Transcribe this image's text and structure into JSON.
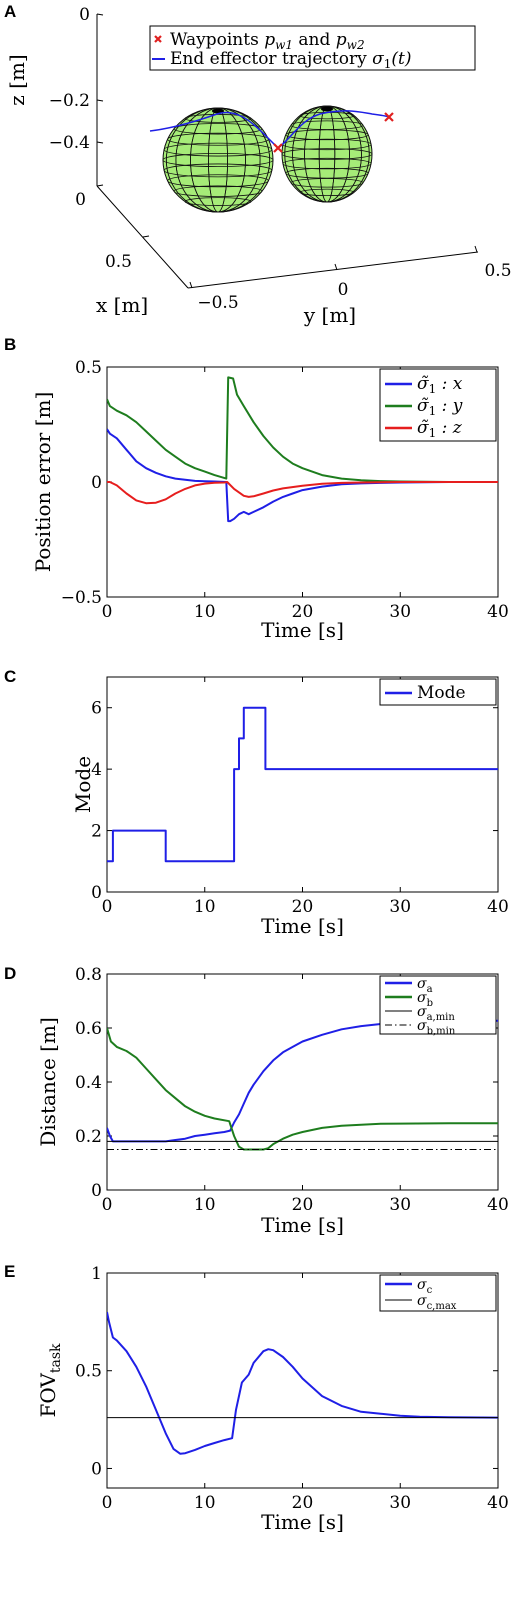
{
  "colors": {
    "blue": "#1f1fe6",
    "green": "#1e7d1e",
    "red": "#e61e1e",
    "black": "#000000",
    "sphere_fill": "#a6ec78",
    "sphere_grid": "#111111",
    "waypoint": "#e02020"
  },
  "panels": {
    "A": {
      "letter": "A"
    },
    "B": {
      "letter": "B"
    },
    "C": {
      "letter": "C"
    },
    "D": {
      "letter": "D"
    },
    "E": {
      "letter": "E"
    }
  },
  "chart_data": [
    {
      "id": "A",
      "type": "scatter",
      "title": "",
      "xlabel": "x [m]",
      "ylabel": "y [m]",
      "zlabel": "z [m]",
      "x_ticks": [
        "0",
        "0.5"
      ],
      "y_ticks": [
        "−0.5",
        "0",
        "0.5"
      ],
      "z_ticks": [
        "0",
        "−0.2",
        "−0.4"
      ],
      "legend": [
        {
          "label": "Waypoints p_w1 and p_w2",
          "marker": "x",
          "color": "#e02020"
        },
        {
          "label": "End effector trajectory σ1(t)",
          "marker": "line",
          "color": "#1f1fe6"
        }
      ],
      "legend_text": {
        "waypoints_prefix": "Waypoints",
        "waypoints_p1": "p",
        "waypoints_sub1": "w1",
        "waypoints_and": "and",
        "waypoints_p2": "p",
        "waypoints_sub2": "w2",
        "trajectory_prefix": "End effector trajectory",
        "trajectory_sym": "σ",
        "trajectory_sub": "1",
        "trajectory_arg": "(t)"
      },
      "objects": [
        "sphere obstacle 1",
        "sphere obstacle 2"
      ],
      "waypoints": 2,
      "legend_position": "top-right"
    },
    {
      "id": "B",
      "type": "line",
      "title": "",
      "xlabel": "Time [s]",
      "ylabel": "Position error [m]",
      "xlim": [
        0,
        40
      ],
      "ylim": [
        -0.5,
        0.5
      ],
      "x_ticks": [
        0,
        10,
        20,
        30,
        40
      ],
      "y_ticks": [
        {
          "v": -0.5,
          "label": "−0.5"
        },
        {
          "v": 0,
          "label": "0"
        },
        {
          "v": 0.5,
          "label": "0.5"
        }
      ],
      "legend_position": "top-right",
      "legend_entries": [
        {
          "sym": "σ̃",
          "sub": "1",
          "rest": " : x"
        },
        {
          "sym": "σ̃",
          "sub": "1",
          "rest": " : y"
        },
        {
          "sym": "σ̃",
          "sub": "1",
          "rest": " : z"
        }
      ],
      "series": [
        {
          "name": "σ̃1 : x",
          "color": "#1f1fe6",
          "x": [
            0,
            0.3,
            1,
            2,
            3,
            4,
            5,
            6,
            7,
            8,
            9,
            10,
            11,
            12.2,
            12.4,
            12.6,
            13,
            13.5,
            14,
            14.5,
            15,
            16,
            17,
            18,
            19,
            20,
            22,
            24,
            26,
            28,
            30,
            35,
            40
          ],
          "y": [
            0.23,
            0.21,
            0.19,
            0.14,
            0.09,
            0.06,
            0.04,
            0.025,
            0.015,
            0.01,
            0.005,
            0.003,
            0.002,
            0.0,
            -0.17,
            -0.17,
            -0.16,
            -0.14,
            -0.13,
            -0.14,
            -0.13,
            -0.11,
            -0.085,
            -0.065,
            -0.05,
            -0.035,
            -0.02,
            -0.01,
            -0.006,
            -0.004,
            -0.002,
            0,
            0
          ]
        },
        {
          "name": "σ̃1 : y",
          "color": "#1e7d1e",
          "x": [
            0,
            0.3,
            1,
            2,
            3,
            4,
            5,
            6,
            7,
            8,
            9,
            10,
            11,
            12.2,
            12.4,
            12.9,
            13.3,
            14,
            15,
            16,
            17,
            18,
            19,
            20,
            22,
            24,
            26,
            28,
            30,
            35,
            40
          ],
          "y": [
            0.36,
            0.33,
            0.31,
            0.29,
            0.26,
            0.22,
            0.18,
            0.14,
            0.11,
            0.08,
            0.06,
            0.045,
            0.03,
            0.015,
            0.455,
            0.45,
            0.38,
            0.33,
            0.26,
            0.2,
            0.15,
            0.11,
            0.08,
            0.06,
            0.03,
            0.015,
            0.008,
            0.004,
            0.002,
            0,
            0
          ]
        },
        {
          "name": "σ̃1 : z",
          "color": "#e61e1e",
          "x": [
            0,
            0.3,
            1,
            2,
            3,
            4,
            5,
            6,
            7,
            8,
            9,
            10,
            11,
            12,
            12.3,
            13,
            14,
            14.5,
            15,
            16,
            17,
            18,
            20,
            22,
            24,
            26,
            30,
            35,
            40
          ],
          "y": [
            0,
            0,
            -0.015,
            -0.05,
            -0.08,
            -0.092,
            -0.09,
            -0.075,
            -0.05,
            -0.03,
            -0.015,
            -0.007,
            -0.003,
            -0.002,
            0,
            -0.03,
            -0.06,
            -0.065,
            -0.062,
            -0.05,
            -0.037,
            -0.028,
            -0.016,
            -0.008,
            -0.004,
            -0.002,
            0,
            0,
            0
          ]
        }
      ]
    },
    {
      "id": "C",
      "type": "line",
      "title": "",
      "xlabel": "Time [s]",
      "ylabel": "Mode",
      "xlim": [
        0,
        40
      ],
      "ylim": [
        0,
        7
      ],
      "x_ticks": [
        0,
        10,
        20,
        30,
        40
      ],
      "y_ticks": [
        {
          "v": 0,
          "label": "0"
        },
        {
          "v": 2,
          "label": "2"
        },
        {
          "v": 4,
          "label": "4"
        },
        {
          "v": 6,
          "label": "6"
        }
      ],
      "legend_position": "top-right",
      "legend_entries": [
        {
          "sym": "Mode",
          "sub": "",
          "rest": ""
        }
      ],
      "series": [
        {
          "name": "Mode",
          "color": "#1f1fe6",
          "x": [
            0,
            0.6,
            0.6,
            6,
            6,
            13,
            13,
            13.5,
            13.5,
            14,
            14,
            16.2,
            16.2,
            40
          ],
          "y": [
            1,
            1,
            2,
            2,
            1,
            1,
            4,
            4,
            5,
            5,
            6,
            6,
            4,
            4
          ]
        }
      ]
    },
    {
      "id": "D",
      "type": "line",
      "title": "",
      "xlabel": "Time [s]",
      "ylabel": "Distance [m]",
      "xlim": [
        0,
        40
      ],
      "ylim": [
        0,
        0.8
      ],
      "x_ticks": [
        0,
        10,
        20,
        30,
        40
      ],
      "y_ticks": [
        {
          "v": 0,
          "label": "0"
        },
        {
          "v": 0.2,
          "label": "0.2"
        },
        {
          "v": 0.4,
          "label": "0.4"
        },
        {
          "v": 0.6,
          "label": "0.6"
        },
        {
          "v": 0.8,
          "label": "0.8"
        }
      ],
      "legend_position": "top-right",
      "legend_entries": [
        {
          "sym": "σ",
          "sub": "a",
          "rest": ""
        },
        {
          "sym": "σ",
          "sub": "b",
          "rest": ""
        },
        {
          "sym": "σ",
          "sub": "a,min",
          "rest": ""
        },
        {
          "sym": "σ",
          "sub": "b,min",
          "rest": ""
        }
      ],
      "series": [
        {
          "name": "σa",
          "color": "#1f1fe6",
          "dash": "",
          "x": [
            0,
            0.3,
            0.6,
            1,
            3,
            6,
            7,
            8,
            9,
            10,
            11,
            12,
            12.6,
            13,
            13.5,
            14,
            14.5,
            15,
            16,
            17,
            18,
            19,
            20,
            22,
            24,
            26,
            28,
            30,
            32,
            35,
            40
          ],
          "y": [
            0.23,
            0.2,
            0.18,
            0.18,
            0.18,
            0.18,
            0.185,
            0.19,
            0.2,
            0.205,
            0.21,
            0.215,
            0.22,
            0.25,
            0.28,
            0.32,
            0.36,
            0.39,
            0.44,
            0.48,
            0.51,
            0.53,
            0.55,
            0.575,
            0.595,
            0.607,
            0.615,
            0.62,
            0.623,
            0.626,
            0.627
          ]
        },
        {
          "name": "σb",
          "color": "#1e7d1e",
          "dash": "",
          "x": [
            0,
            0.4,
            1,
            2,
            3,
            4,
            5,
            6,
            7,
            8,
            9,
            10,
            11,
            12.5,
            13,
            13.5,
            14,
            15,
            16,
            16.5,
            17,
            18,
            19,
            20,
            22,
            24,
            26,
            28,
            30,
            35,
            40
          ],
          "y": [
            0.6,
            0.55,
            0.53,
            0.515,
            0.49,
            0.45,
            0.41,
            0.37,
            0.34,
            0.31,
            0.29,
            0.275,
            0.265,
            0.255,
            0.2,
            0.16,
            0.15,
            0.15,
            0.15,
            0.155,
            0.17,
            0.19,
            0.205,
            0.215,
            0.23,
            0.238,
            0.242,
            0.245,
            0.246,
            0.247,
            0.247
          ]
        },
        {
          "name": "σa,min",
          "color": "#000000",
          "dash": "",
          "x": [
            0,
            40
          ],
          "y": [
            0.18,
            0.18
          ]
        },
        {
          "name": "σb,min",
          "color": "#000000",
          "dash": "7 3 1.5 3",
          "x": [
            0,
            40
          ],
          "y": [
            0.15,
            0.15
          ]
        }
      ]
    },
    {
      "id": "E",
      "type": "line",
      "title": "",
      "xlabel": "Time [s]",
      "ylabel": "FOV task",
      "ylabel_main": "FOV",
      "ylabel_sub": "task",
      "xlim": [
        0,
        40
      ],
      "ylim": [
        -0.1,
        1
      ],
      "x_ticks": [
        0,
        10,
        20,
        30,
        40
      ],
      "y_ticks": [
        {
          "v": 0,
          "label": "0"
        },
        {
          "v": 0.5,
          "label": "0.5"
        },
        {
          "v": 1,
          "label": "1"
        }
      ],
      "legend_position": "top-right",
      "legend_entries": [
        {
          "sym": "σ",
          "sub": "c",
          "rest": ""
        },
        {
          "sym": "σ",
          "sub": "c,max",
          "rest": ""
        }
      ],
      "series": [
        {
          "name": "σc",
          "color": "#1f1fe6",
          "dash": "",
          "x": [
            0,
            0.2,
            0.6,
            1,
            2,
            3,
            4,
            5,
            6,
            6.8,
            7.5,
            8,
            9,
            10,
            11,
            12,
            12.8,
            13.2,
            13.8,
            14.5,
            15,
            16,
            16.5,
            17,
            18,
            19,
            20,
            22,
            24,
            26,
            28,
            30,
            32,
            35,
            40
          ],
          "y": [
            0.8,
            0.75,
            0.67,
            0.655,
            0.6,
            0.52,
            0.42,
            0.3,
            0.18,
            0.1,
            0.075,
            0.078,
            0.095,
            0.115,
            0.13,
            0.145,
            0.155,
            0.3,
            0.44,
            0.48,
            0.54,
            0.6,
            0.61,
            0.605,
            0.57,
            0.52,
            0.46,
            0.37,
            0.32,
            0.29,
            0.28,
            0.27,
            0.265,
            0.262,
            0.26
          ]
        },
        {
          "name": "σc,max",
          "color": "#000000",
          "dash": "",
          "x": [
            0,
            40
          ],
          "y": [
            0.26,
            0.26
          ]
        }
      ]
    }
  ]
}
